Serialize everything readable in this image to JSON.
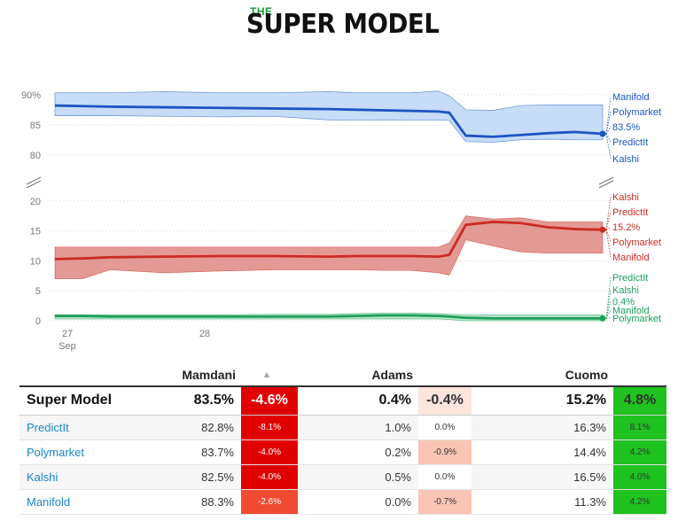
{
  "logo": {
    "small": "THE",
    "main": "SUPER MODEL"
  },
  "colors": {
    "mamdani": "#1c55c2",
    "mamdani_band": "#c6dcf7",
    "cuomo": "#cc2b22",
    "cuomo_band": "#e39a95",
    "adams": "#1aa05a",
    "adams_band": "#bfe6cd",
    "neg_strong": "#e00000",
    "neg_mid": "#f04a32",
    "neg_light": "#fac4b4",
    "neg_faint": "#fde4dc",
    "pos_strong": "#1fc21f",
    "pos_mid": "#2dd12d"
  },
  "chart_data": {
    "type": "line",
    "x_ticks": [
      {
        "day": "27",
        "month": "Sep"
      },
      {
        "day": "28",
        "month": ""
      }
    ],
    "panels": [
      {
        "name": "top",
        "yticks": [
          "90%",
          "85",
          "80"
        ],
        "ylim": [
          78.5,
          91
        ]
      },
      {
        "name": "bottom",
        "yticks": [
          "20",
          "15",
          "10",
          "5",
          "0"
        ],
        "ylim": [
          0,
          21
        ]
      }
    ],
    "x": [
      0,
      0.05,
      0.1,
      0.2,
      0.3,
      0.4,
      0.5,
      0.55,
      0.6,
      0.65,
      0.7,
      0.72,
      0.75,
      0.8,
      0.85,
      0.9,
      0.95,
      1.0
    ],
    "series": [
      {
        "name": "Mamdani",
        "values": [
          88.2,
          88.1,
          88.0,
          87.9,
          87.8,
          87.7,
          87.6,
          87.5,
          87.4,
          87.3,
          87.2,
          87.0,
          83.2,
          83.0,
          83.3,
          83.6,
          83.8,
          83.5
        ],
        "band_high": [
          90.3,
          90.3,
          90.3,
          90.5,
          90.3,
          90.3,
          90.5,
          90.3,
          90.3,
          90.3,
          90.6,
          89.8,
          87.5,
          87.4,
          88.2,
          88.3,
          88.3,
          88.3
        ],
        "band_low": [
          86.5,
          86.5,
          86.5,
          86.4,
          86.3,
          86.4,
          85.8,
          85.8,
          85.8,
          85.8,
          85.8,
          85.7,
          82.2,
          82.1,
          82.5,
          82.6,
          82.5,
          82.5
        ],
        "end_labels": [
          "Manifold",
          "Polymarket",
          "83.5%",
          "PredictIt",
          "Kalshi"
        ]
      },
      {
        "name": "Cuomo",
        "values": [
          10.3,
          10.4,
          10.6,
          10.7,
          10.8,
          10.8,
          10.7,
          10.8,
          10.8,
          10.8,
          10.7,
          11.0,
          16.0,
          16.5,
          16.3,
          15.6,
          15.3,
          15.2
        ],
        "band_high": [
          12.3,
          12.3,
          12.3,
          12.3,
          12.3,
          12.3,
          12.3,
          12.3,
          12.3,
          12.3,
          12.3,
          13.0,
          17.5,
          17.0,
          17.2,
          16.5,
          16.5,
          16.5
        ],
        "band_low": [
          7.0,
          7.0,
          8.5,
          8.0,
          8.3,
          8.5,
          8.5,
          8.5,
          8.4,
          8.4,
          8.0,
          7.6,
          13.5,
          12.5,
          11.5,
          11.3,
          11.3,
          11.3
        ],
        "end_labels": [
          "Kalshi",
          "PredictIt",
          "15.2%",
          "Polymarket",
          "Manifold"
        ]
      },
      {
        "name": "Adams",
        "values": [
          0.8,
          0.8,
          0.7,
          0.7,
          0.7,
          0.7,
          0.7,
          0.8,
          0.9,
          0.9,
          0.8,
          0.7,
          0.5,
          0.4,
          0.4,
          0.4,
          0.4,
          0.4
        ],
        "band_high": [
          1.0,
          1.0,
          1.0,
          1.0,
          1.0,
          1.1,
          1.1,
          1.2,
          1.3,
          1.3,
          1.2,
          1.1,
          1.0,
          1.0,
          1.0,
          1.0,
          1.0,
          1.0
        ],
        "band_low": [
          0.3,
          0.3,
          0.3,
          0.3,
          0.3,
          0.3,
          0.3,
          0.3,
          0.3,
          0.3,
          0.3,
          0.2,
          0.0,
          0.0,
          0.0,
          0.0,
          0.0,
          0.0
        ],
        "end_labels": [
          "PredictIt",
          "Kalshi",
          "0.4%",
          "Manifold",
          "Polymarket"
        ]
      }
    ]
  },
  "table": {
    "headers": {
      "mamdani": "Mamdani",
      "sort_icon": "▲",
      "adams": "Adams",
      "cuomo": "Cuomo"
    },
    "rows": [
      {
        "name": "Super Model",
        "mamdani": "83.5%",
        "mamdani_chg": "-4.6%",
        "adams": "0.4%",
        "adams_chg": "-0.4%",
        "cuomo": "15.2%",
        "cuomo_chg": "4.8%"
      },
      {
        "name": "PredictIt",
        "mamdani": "82.8%",
        "mamdani_chg": "-8.1%",
        "adams": "1.0%",
        "adams_chg": "0.0%",
        "cuomo": "16.3%",
        "cuomo_chg": "8.1%"
      },
      {
        "name": "Polymarket",
        "mamdani": "83.7%",
        "mamdani_chg": "-4.0%",
        "adams": "0.2%",
        "adams_chg": "-0.9%",
        "cuomo": "14.4%",
        "cuomo_chg": "4.2%"
      },
      {
        "name": "Kalshi",
        "mamdani": "82.5%",
        "mamdani_chg": "-4.0%",
        "adams": "0.5%",
        "adams_chg": "0.0%",
        "cuomo": "16.5%",
        "cuomo_chg": "4.0%"
      },
      {
        "name": "Manifold",
        "mamdani": "88.3%",
        "mamdani_chg": "-2.6%",
        "adams": "0.0%",
        "adams_chg": "-0.7%",
        "cuomo": "11.3%",
        "cuomo_chg": "4.2%"
      }
    ]
  }
}
